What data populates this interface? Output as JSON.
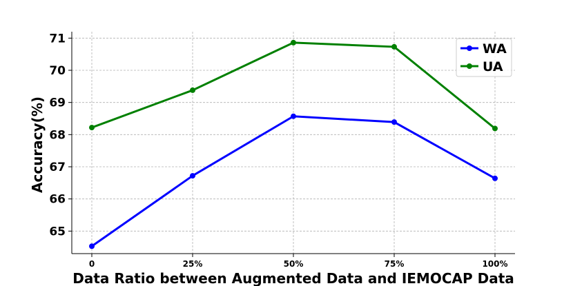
{
  "chart_data": {
    "type": "line",
    "xlabel": "Data Ratio between Augmented Data and IEMOCAP Data",
    "ylabel": "Accuracy(%)",
    "categories": [
      "0",
      "25%",
      "50%",
      "75%",
      "100%"
    ],
    "ylim": [
      64.3,
      71.2
    ],
    "yticks": [
      65,
      66,
      67,
      68,
      69,
      70,
      71
    ],
    "grid": true,
    "legend_position": "top-right",
    "series": [
      {
        "name": "WA",
        "color": "#0000ff",
        "values": [
          64.53,
          66.72,
          68.57,
          68.39,
          66.64
        ]
      },
      {
        "name": "UA",
        "color": "#008000",
        "values": [
          68.22,
          69.38,
          70.86,
          70.73,
          68.19
        ]
      }
    ]
  }
}
